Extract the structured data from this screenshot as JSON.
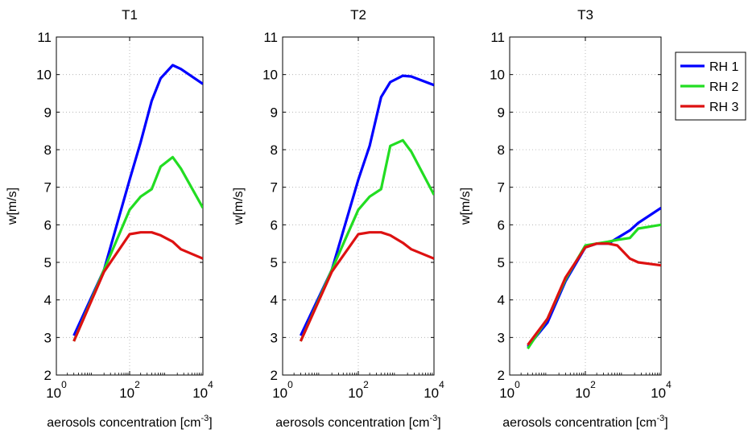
{
  "chart_data": [
    {
      "type": "line",
      "title": "T1",
      "xlabel": "aerosols concentration [cm",
      "xlabel_sup": "-3",
      "xlabel_end": "]",
      "ylabel": "w[m/s]",
      "xscale": "log",
      "xlim": [
        1,
        10000
      ],
      "ylim": [
        2,
        11
      ],
      "yticks": [
        "2",
        "3",
        "4",
        "5",
        "6",
        "7",
        "8",
        "9",
        "10",
        "11"
      ],
      "xticks": [
        {
          "base": "10",
          "exp": "0"
        },
        {
          "base": "10",
          "exp": "2"
        },
        {
          "base": "10",
          "exp": "4"
        }
      ],
      "grid": true,
      "series": [
        {
          "name": "RH 1",
          "color": "#0000ff",
          "x": [
            3,
            20,
            100,
            200,
            400,
            700,
            1500,
            2500,
            10000
          ],
          "y": [
            3.05,
            4.8,
            7.2,
            8.2,
            9.3,
            9.9,
            10.25,
            10.15,
            9.75
          ]
        },
        {
          "name": "RH 2",
          "color": "#22dd22",
          "x": [
            3,
            20,
            100,
            200,
            400,
            700,
            1500,
            2500,
            10000
          ],
          "y": [
            2.9,
            4.8,
            6.4,
            6.75,
            6.95,
            7.55,
            7.8,
            7.5,
            6.45
          ]
        },
        {
          "name": "RH 3",
          "color": "#dd1111",
          "x": [
            3,
            20,
            100,
            200,
            400,
            700,
            1500,
            2500,
            10000
          ],
          "y": [
            2.9,
            4.75,
            5.75,
            5.8,
            5.8,
            5.72,
            5.55,
            5.35,
            5.1
          ]
        }
      ]
    },
    {
      "type": "line",
      "title": "T2",
      "xlabel": "aerosols concentration [cm",
      "xlabel_sup": "-3",
      "xlabel_end": "]",
      "ylabel": "w[m/s]",
      "xscale": "log",
      "xlim": [
        1,
        10000
      ],
      "ylim": [
        2,
        11
      ],
      "yticks": [
        "2",
        "3",
        "4",
        "5",
        "6",
        "7",
        "8",
        "9",
        "10",
        "11"
      ],
      "xticks": [
        {
          "base": "10",
          "exp": "0"
        },
        {
          "base": "10",
          "exp": "2"
        },
        {
          "base": "10",
          "exp": "4"
        }
      ],
      "grid": true,
      "series": [
        {
          "name": "RH 1",
          "color": "#0000ff",
          "x": [
            3,
            20,
            100,
            200,
            400,
            700,
            1500,
            2500,
            10000
          ],
          "y": [
            3.05,
            4.8,
            7.2,
            8.1,
            9.4,
            9.8,
            9.97,
            9.95,
            9.72
          ]
        },
        {
          "name": "RH 2",
          "color": "#22dd22",
          "x": [
            3,
            20,
            100,
            200,
            400,
            700,
            1500,
            2500,
            10000
          ],
          "y": [
            2.9,
            4.8,
            6.4,
            6.75,
            6.95,
            8.1,
            8.25,
            7.95,
            6.8
          ]
        },
        {
          "name": "RH 3",
          "color": "#dd1111",
          "x": [
            3,
            20,
            100,
            200,
            400,
            700,
            1500,
            2500,
            10000
          ],
          "y": [
            2.9,
            4.75,
            5.75,
            5.8,
            5.8,
            5.72,
            5.52,
            5.35,
            5.1
          ]
        }
      ]
    },
    {
      "type": "line",
      "title": "T3",
      "xlabel": "aerosols concentration [cm",
      "xlabel_sup": "-3",
      "xlabel_end": "]",
      "ylabel": "w[m/s]",
      "xscale": "log",
      "xlim": [
        1,
        10000
      ],
      "ylim": [
        2,
        11
      ],
      "yticks": [
        "2",
        "3",
        "4",
        "5",
        "6",
        "7",
        "8",
        "9",
        "10",
        "11"
      ],
      "xticks": [
        {
          "base": "10",
          "exp": "0"
        },
        {
          "base": "10",
          "exp": "2"
        },
        {
          "base": "10",
          "exp": "4"
        }
      ],
      "grid": true,
      "legend": {
        "position": "outside-right",
        "entries": [
          "RH 1",
          "RH 2",
          "RH 3"
        ]
      },
      "series": [
        {
          "name": "RH 1",
          "color": "#0000ff",
          "x": [
            3,
            10,
            30,
            100,
            200,
            400,
            700,
            1500,
            2500,
            10000
          ],
          "y": [
            2.75,
            3.4,
            4.5,
            5.4,
            5.5,
            5.5,
            5.65,
            5.85,
            6.05,
            6.45
          ]
        },
        {
          "name": "RH 2",
          "color": "#22dd22",
          "x": [
            3,
            10,
            30,
            100,
            200,
            400,
            700,
            1500,
            2500,
            10000
          ],
          "y": [
            2.7,
            3.5,
            4.55,
            5.45,
            5.5,
            5.55,
            5.6,
            5.65,
            5.9,
            6.0
          ]
        },
        {
          "name": "RH 3",
          "color": "#dd1111",
          "x": [
            3,
            10,
            30,
            100,
            200,
            400,
            700,
            1500,
            2500,
            10000
          ],
          "y": [
            2.8,
            3.5,
            4.6,
            5.4,
            5.5,
            5.5,
            5.45,
            5.1,
            5.0,
            4.92
          ]
        }
      ]
    }
  ]
}
